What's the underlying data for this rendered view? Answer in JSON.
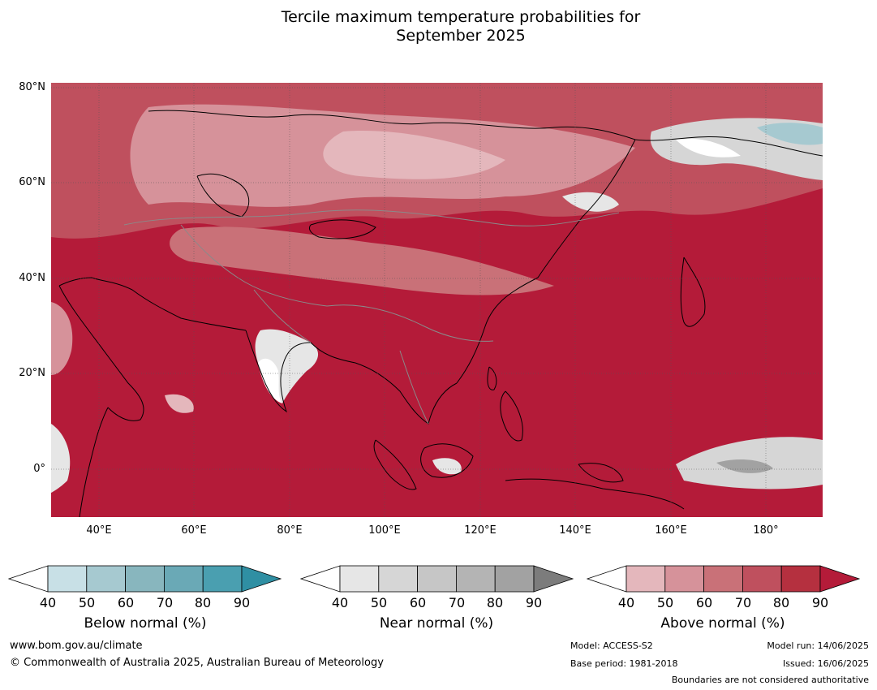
{
  "title": {
    "line1": "Tercile maximum temperature probabilities for",
    "line2": "September 2025"
  },
  "map": {
    "lat_labels": [
      "80°N",
      "60°N",
      "40°N",
      "20°N",
      "0°"
    ],
    "lon_labels": [
      "40°E",
      "60°E",
      "80°E",
      "100°E",
      "120°E",
      "140°E",
      "160°E",
      "180°"
    ],
    "extent": {
      "lon_min": 30,
      "lon_max": 192,
      "lat_min": -10,
      "lat_max": 81
    },
    "dominant_category": "Above normal",
    "dominant_color": "#b41b39"
  },
  "legends": [
    {
      "name": "Below normal (%)",
      "ticks": [
        "40",
        "50",
        "60",
        "70",
        "80",
        "90"
      ],
      "colors": [
        "#ffffff",
        "#c8e0e6",
        "#a6c9d0",
        "#88b6be",
        "#6aa9b6",
        "#4a9fb0",
        "#2f8fa3"
      ]
    },
    {
      "name": "Near normal (%)",
      "ticks": [
        "40",
        "50",
        "60",
        "70",
        "80",
        "90"
      ],
      "colors": [
        "#ffffff",
        "#e6e6e6",
        "#d6d6d6",
        "#c6c6c6",
        "#b4b4b4",
        "#a2a2a2",
        "#7c7c7c"
      ]
    },
    {
      "name": "Above normal (%)",
      "ticks": [
        "40",
        "50",
        "60",
        "70",
        "80",
        "90"
      ],
      "colors": [
        "#ffffff",
        "#e4b7bc",
        "#d6929a",
        "#c97178",
        "#bf505e",
        "#b5303f",
        "#b41b39"
      ]
    }
  ],
  "footer": {
    "website": "www.bom.gov.au/climate",
    "copyright": "© Commonwealth of Australia 2025, Australian Bureau of Meteorology",
    "model": "Model: ACCESS-S2",
    "base_period": "Base period: 1981-2018",
    "model_run": "Model run: 14/06/2025",
    "issued": "Issued: 16/06/2025",
    "disclaimer": "Boundaries are not considered authoritative"
  }
}
